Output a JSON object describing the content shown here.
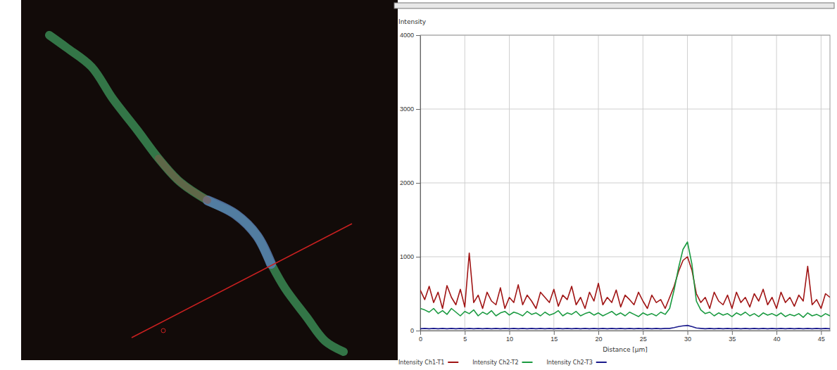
{
  "chart_data": {
    "type": "line",
    "ylabel": "Intensity",
    "xlabel": "Distance [µm]",
    "xlim": [
      0,
      46
    ],
    "xticks": [
      0,
      5,
      10,
      15,
      20,
      25,
      30,
      35,
      40,
      45
    ],
    "ylim": [
      0,
      4000
    ],
    "yticks": [
      0,
      1000,
      2000,
      3000,
      4000
    ],
    "grid": true,
    "legend": "bottom",
    "x": [
      0,
      0.5,
      1,
      1.5,
      2,
      2.5,
      3,
      3.5,
      4,
      4.5,
      5,
      5.5,
      6,
      6.5,
      7,
      7.5,
      8,
      8.5,
      9,
      9.5,
      10,
      10.5,
      11,
      11.5,
      12,
      12.5,
      13,
      13.5,
      14,
      14.5,
      15,
      15.5,
      16,
      16.5,
      17,
      17.5,
      18,
      18.5,
      19,
      19.5,
      20,
      20.5,
      21,
      21.5,
      22,
      22.5,
      23,
      23.5,
      24,
      24.5,
      25,
      25.5,
      26,
      26.5,
      27,
      27.5,
      28,
      28.5,
      29,
      29.5,
      30,
      30.5,
      31,
      31.5,
      32,
      32.5,
      33,
      33.5,
      34,
      34.5,
      35,
      35.5,
      36,
      36.5,
      37,
      37.5,
      38,
      38.5,
      39,
      39.5,
      40,
      40.5,
      41,
      41.5,
      42,
      42.5,
      43,
      43.5,
      44,
      44.5,
      45,
      45.5,
      46
    ],
    "series": [
      {
        "name": "Intensity Ch1-T1",
        "color": "#a01414",
        "values": [
          550,
          420,
          600,
          380,
          520,
          300,
          610,
          450,
          350,
          560,
          320,
          1050,
          380,
          480,
          300,
          520,
          400,
          350,
          580,
          300,
          450,
          380,
          620,
          350,
          480,
          400,
          300,
          520,
          450,
          380,
          560,
          330,
          480,
          420,
          600,
          350,
          450,
          300,
          520,
          400,
          640,
          350,
          450,
          380,
          550,
          320,
          480,
          420,
          350,
          520,
          400,
          300,
          480,
          380,
          420,
          300,
          450,
          600,
          800,
          950,
          1000,
          820,
          500,
          380,
          450,
          300,
          520,
          400,
          350,
          480,
          300,
          520,
          380,
          450,
          320,
          500,
          400,
          560,
          350,
          450,
          300,
          520,
          380,
          450,
          330,
          480,
          400,
          870,
          350,
          420,
          300,
          500,
          450
        ]
      },
      {
        "name": "Intensity Ch2-T2",
        "color": "#1a9a40",
        "values": [
          300,
          280,
          250,
          300,
          230,
          270,
          220,
          300,
          250,
          200,
          260,
          230,
          280,
          200,
          250,
          220,
          270,
          200,
          240,
          260,
          210,
          250,
          230,
          200,
          260,
          220,
          240,
          200,
          250,
          210,
          230,
          270,
          200,
          240,
          220,
          260,
          200,
          230,
          250,
          210,
          240,
          200,
          230,
          260,
          210,
          240,
          200,
          250,
          220,
          190,
          240,
          210,
          230,
          200,
          250,
          220,
          300,
          550,
          850,
          1100,
          1200,
          900,
          400,
          280,
          230,
          250,
          200,
          240,
          210,
          230,
          190,
          240,
          210,
          250,
          200,
          230,
          190,
          240,
          210,
          230,
          200,
          240,
          190,
          220,
          200,
          230,
          180,
          240,
          200,
          220,
          190,
          230,
          200
        ]
      },
      {
        "name": "Intensity Ch2-T3",
        "color": "#1a1a8c",
        "values": [
          25,
          30,
          25,
          30,
          25,
          30,
          25,
          30,
          25,
          30,
          25,
          30,
          25,
          30,
          25,
          30,
          25,
          30,
          25,
          30,
          25,
          30,
          25,
          30,
          25,
          30,
          25,
          30,
          25,
          30,
          25,
          30,
          25,
          30,
          25,
          30,
          25,
          30,
          25,
          30,
          25,
          30,
          25,
          30,
          25,
          30,
          25,
          30,
          25,
          30,
          25,
          30,
          25,
          30,
          25,
          30,
          30,
          40,
          55,
          65,
          70,
          55,
          35,
          30,
          25,
          30,
          25,
          30,
          25,
          30,
          25,
          30,
          25,
          30,
          25,
          30,
          25,
          30,
          25,
          30,
          25,
          30,
          25,
          30,
          25,
          30,
          25,
          30,
          25,
          30,
          25,
          30,
          25
        ]
      }
    ]
  }
}
